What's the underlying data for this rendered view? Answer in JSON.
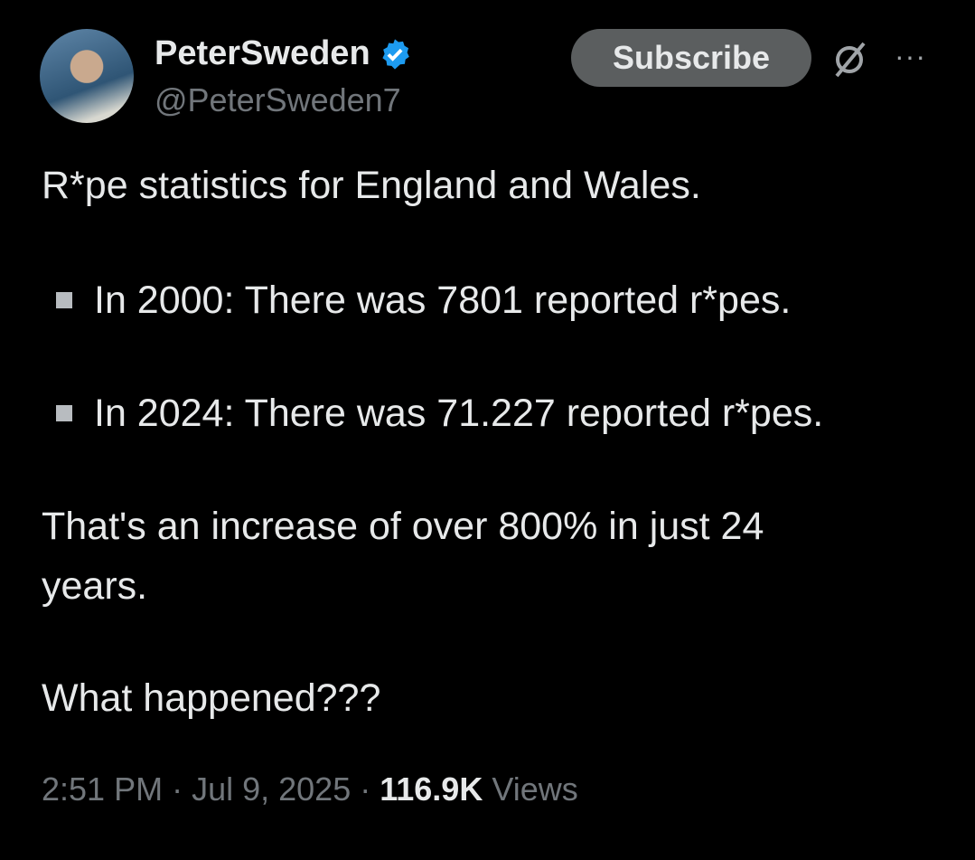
{
  "author": {
    "name": "PeterSweden",
    "handle": "@PeterSweden7",
    "verified": true,
    "badge_color": "#1d9bf0"
  },
  "actions": {
    "subscribe_label": "Subscribe",
    "grok_icon": "grok-icon",
    "more_label": "···"
  },
  "tweet": {
    "intro": "R*pe statistics for England and Wales.",
    "bullets": [
      "In 2000: There was 7801 reported r*pes.",
      "In 2024: There was 71.227 reported r*pes."
    ],
    "line1": "That's an increase of over 800% in just 24",
    "line2": "years.",
    "question": "What happened???"
  },
  "meta": {
    "time": "2:51 PM",
    "sep1": " · ",
    "date": "Jul 9, 2025",
    "sep2": " · ",
    "views_count": "116.9K",
    "views_label": " Views"
  }
}
